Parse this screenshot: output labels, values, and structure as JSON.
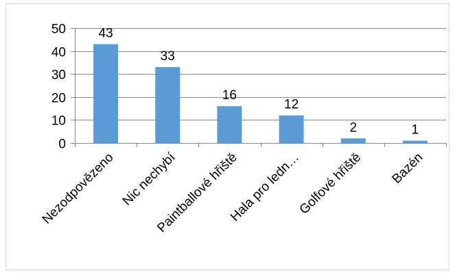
{
  "chart_data": {
    "type": "bar",
    "title": "",
    "xlabel": "",
    "ylabel": "",
    "categories": [
      "Nezodpovězeno",
      "Nic nechybí",
      "Paintballové hřiště",
      "Hala pro ledn…",
      "Golfové hřiště",
      "Bazén"
    ],
    "values": [
      43,
      33,
      16,
      12,
      2,
      1
    ],
    "data_labels": [
      "43",
      "33",
      "16",
      "12",
      "2",
      "1"
    ],
    "ylim": [
      0,
      50
    ],
    "yticks": [
      "0",
      "10",
      "20",
      "30",
      "40",
      "50"
    ],
    "grid": true,
    "legend": "none",
    "bar_color": "#5b9bd5"
  }
}
